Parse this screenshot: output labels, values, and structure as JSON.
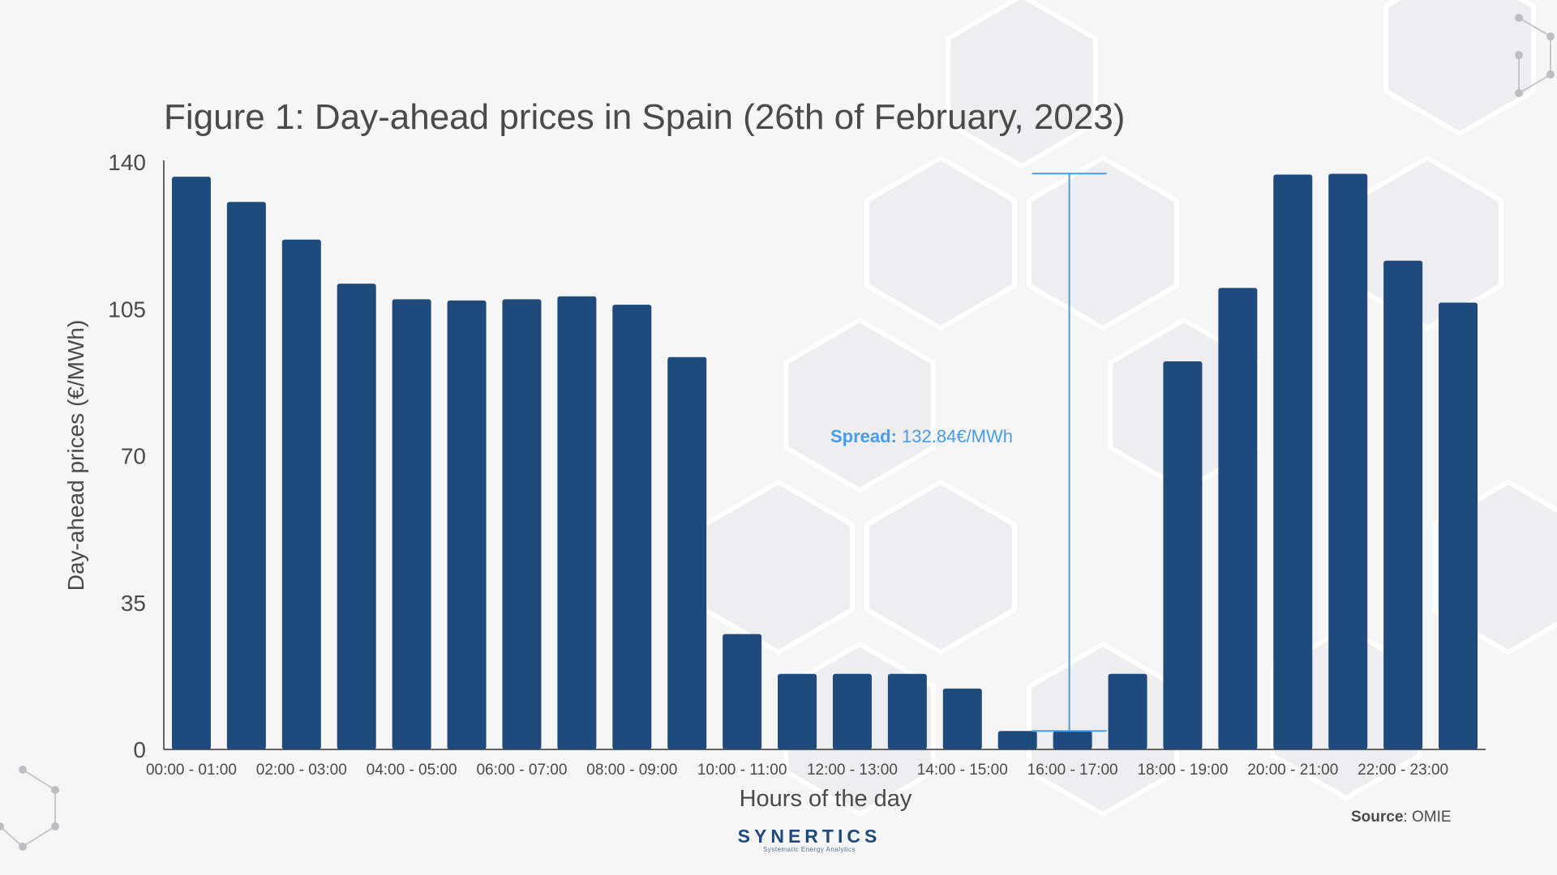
{
  "chart_data": {
    "type": "bar",
    "title": "Figure 1: Day-ahead prices in Spain (26th of February, 2023)",
    "xlabel": "Hours of the day",
    "ylabel": "Day-ahead prices (€/MWh)",
    "ylim": [
      0,
      140
    ],
    "yticks": [
      "0",
      "35",
      "70",
      "105",
      "140"
    ],
    "grid": false,
    "bar_color": "#1f4a7c",
    "annotation_color": "#4a9be8",
    "categories": [
      "00:00 - 01:00",
      "01:00 - 02:00",
      "02:00 - 03:00",
      "03:00 - 04:00",
      "04:00 - 05:00",
      "05:00 - 06:00",
      "06:00 - 07:00",
      "07:00 - 08:00",
      "08:00 - 09:00",
      "09:00 - 10:00",
      "10:00 - 11:00",
      "11:00 - 12:00",
      "12:00 - 13:00",
      "13:00 - 14:00",
      "14:00 - 15:00",
      "15:00 - 16:00",
      "16:00 - 17:00",
      "17:00 - 18:00",
      "18:00 - 19:00",
      "19:00 - 20:00",
      "20:00 - 21:00",
      "21:00 - 22:00",
      "22:00 - 23:00",
      "23:00 - 24:00"
    ],
    "xtick_labels_shown": [
      "00:00 - 01:00",
      "02:00 - 03:00",
      "04:00 - 05:00",
      "06:00 - 07:00",
      "08:00 - 09:00",
      "10:00 - 11:00",
      "12:00 - 13:00",
      "14:00 - 15:00",
      "16:00 - 17:00",
      "18:00 - 19:00",
      "20:00 - 21:00",
      "22:00 - 23:00"
    ],
    "values": [
      136.5,
      130.5,
      121.5,
      111.0,
      107.3,
      107.0,
      107.3,
      108.0,
      106.0,
      93.5,
      27.5,
      18.0,
      18.0,
      18.0,
      14.5,
      4.4,
      4.4,
      18.0,
      92.5,
      110.0,
      137.0,
      137.2,
      116.5,
      106.5
    ],
    "spread_annotation": {
      "label": "Spread:",
      "value_text": "132.84€/MWh",
      "low": 4.4,
      "high": 137.24
    }
  },
  "source": {
    "label": "Source",
    "value": ": OMIE"
  },
  "logo": {
    "name": "SYNERTICS",
    "tagline": "Systematic Energy Analytics"
  }
}
